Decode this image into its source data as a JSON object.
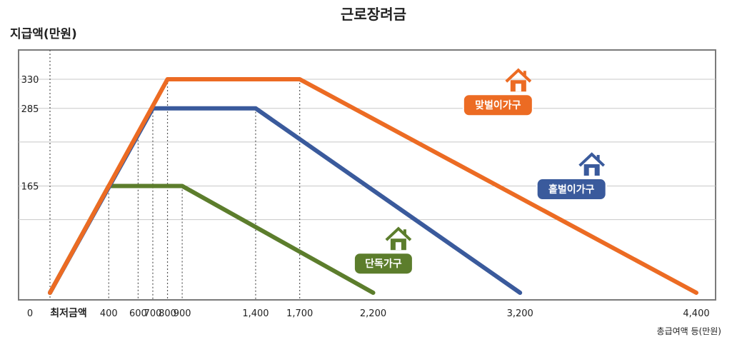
{
  "chart_data": {
    "type": "line",
    "title": "근로장려금",
    "ylabel": "지급액(만원)",
    "xlabel": "총급여액 등(만원)",
    "xlim": [
      0,
      4500
    ],
    "ylim": [
      0,
      380
    ],
    "x_ticks": [
      {
        "value": 0,
        "label": "0"
      },
      {
        "value": 400,
        "label": "400"
      },
      {
        "value": 600,
        "label": "600"
      },
      {
        "value": 700,
        "label": "700"
      },
      {
        "value": 800,
        "label": "800"
      },
      {
        "value": 900,
        "label": "900"
      },
      {
        "value": 1400,
        "label": "1,400"
      },
      {
        "value": 1700,
        "label": "1,700"
      },
      {
        "value": 2200,
        "label": "2,200"
      },
      {
        "value": 3200,
        "label": "3,200"
      },
      {
        "value": 4400,
        "label": "4,400"
      }
    ],
    "y_ticks": [
      {
        "value": 165,
        "label": "165"
      },
      {
        "value": 285,
        "label": "285"
      },
      {
        "value": 330,
        "label": "330"
      }
    ],
    "x_min_label": "최저금액",
    "gridlines_y": [
      113,
      233
    ],
    "series": [
      {
        "name": "맞벌이가구",
        "color": "#ec6b23",
        "x": [
          0,
          800,
          1700,
          4400
        ],
        "y": [
          0,
          330,
          330,
          0
        ]
      },
      {
        "name": "홑벌이가구",
        "color": "#3a5a9c",
        "x": [
          0,
          700,
          1400,
          3200
        ],
        "y": [
          0,
          285,
          285,
          0
        ]
      },
      {
        "name": "단독가구",
        "color": "#5c7d2c",
        "x": [
          0,
          400,
          900,
          2200
        ],
        "y": [
          0,
          165,
          165,
          0
        ]
      }
    ],
    "series_labels": [
      {
        "name": "맞벌이가구",
        "x": 3050,
        "y": 290
      },
      {
        "name": "홑벌이가구",
        "x": 3550,
        "y": 160
      },
      {
        "name": "단독가구",
        "x": 2270,
        "y": 45
      }
    ],
    "grid": true
  }
}
